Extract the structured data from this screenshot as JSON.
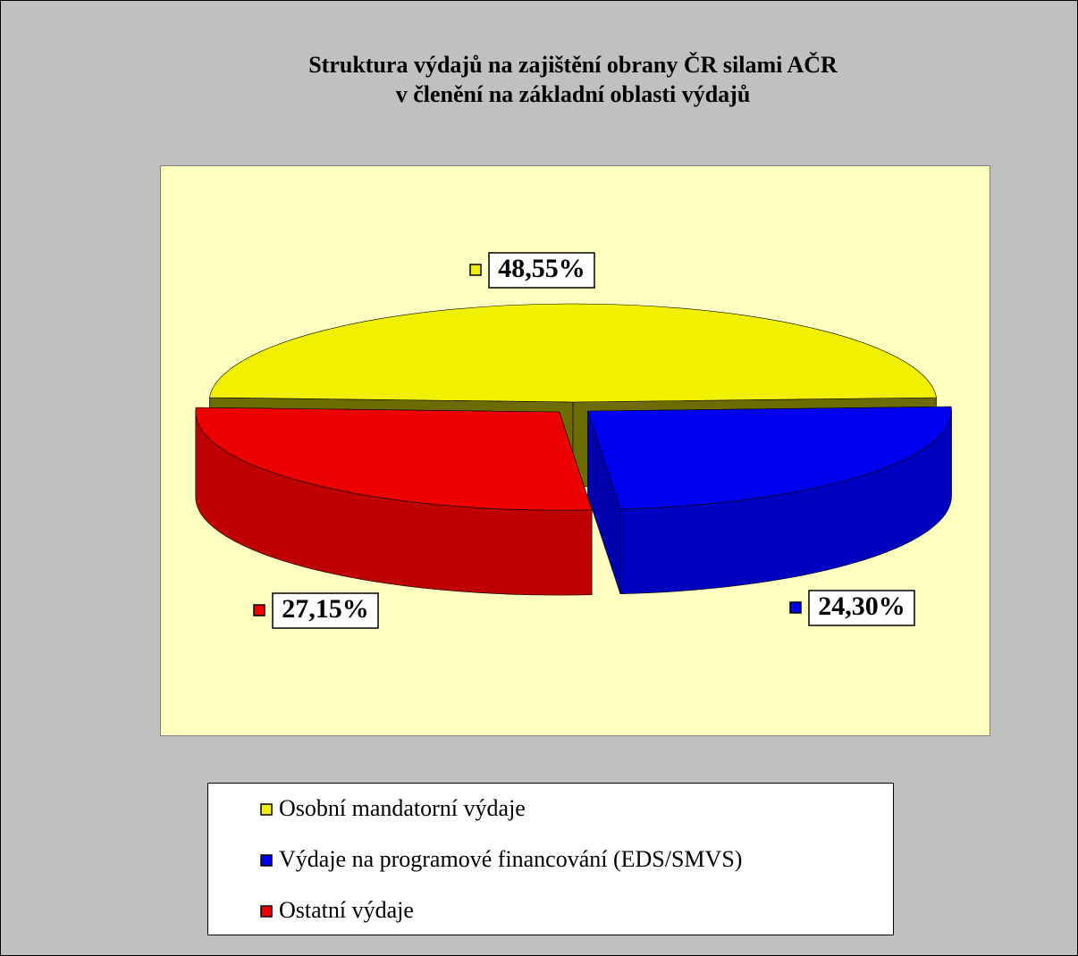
{
  "chart_data": {
    "type": "pie",
    "title": "Struktura výdajů na zajištění obrany ČR silami AČR",
    "subtitle": "v členění na základní oblasti výdajů",
    "categories": [
      "Osobní mandatorní výdaje",
      "Výdaje na programové financování (EDS/SMVS)",
      "Ostatní výdaje"
    ],
    "values": [
      48.55,
      24.3,
      27.15
    ],
    "value_labels": [
      "48,55%",
      "24,30%",
      "27,15%"
    ],
    "colors": [
      "#f0f000",
      "#0000f0",
      "#ee0000"
    ],
    "legend": "bottom"
  }
}
